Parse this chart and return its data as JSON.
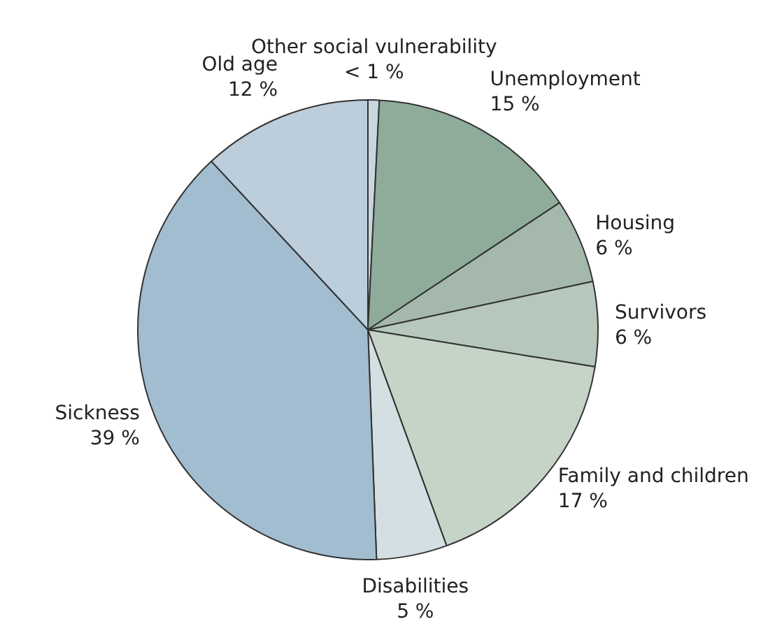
{
  "chart_data": {
    "type": "pie",
    "categories": [
      "Other social vulnerability",
      "Unemployment",
      "Housing",
      "Survivors",
      "Family and children",
      "Disabilities",
      "Sickness",
      "Old age"
    ],
    "values": [
      0.8,
      15,
      6,
      6,
      17,
      5,
      39,
      12
    ],
    "value_labels": [
      "< 1 %",
      "15 %",
      "6 %",
      "6 %",
      "17 %",
      "5 %",
      "39 %",
      "12 %"
    ],
    "colors": [
      "#c8d6e0",
      "#8fac9b",
      "#a4b9ac",
      "#b6c8bc",
      "#c6d4c8",
      "#d3dfe2",
      "#a2bdd0",
      "#bccedb"
    ],
    "legend": false
  }
}
